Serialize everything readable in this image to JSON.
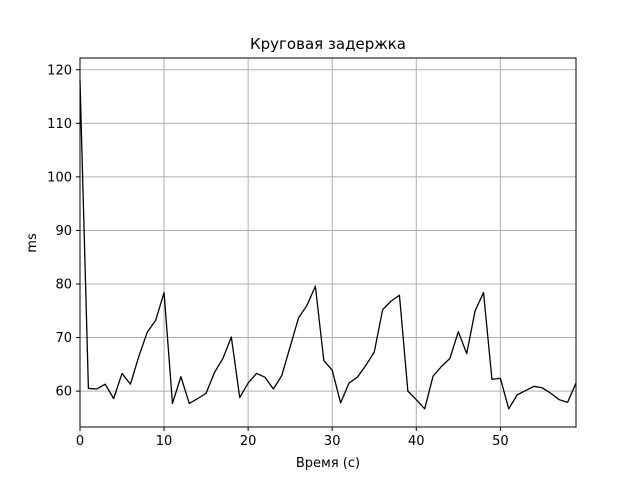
{
  "chart_data": {
    "type": "line",
    "title": "Круговая задержка",
    "xlabel": "Время (с)",
    "ylabel": "ms",
    "xlim": [
      0,
      59
    ],
    "ylim": [
      53.3,
      122.2
    ],
    "xticks": [
      0,
      10,
      20,
      30,
      40,
      50
    ],
    "yticks": [
      60,
      70,
      80,
      90,
      100,
      110,
      120
    ],
    "grid": true,
    "line_color": "#000000",
    "grid_color": "#b0b0b0",
    "series": [
      {
        "x": [
          0,
          1,
          2,
          3,
          4,
          5,
          6,
          7,
          8,
          9,
          10,
          11,
          12,
          13,
          14,
          15,
          16,
          17,
          18,
          19,
          20,
          21,
          22,
          23,
          24,
          25,
          26,
          27,
          28,
          29,
          30,
          31,
          32,
          33,
          34,
          35,
          36,
          37,
          38,
          39,
          40,
          41,
          42,
          43,
          44,
          45,
          46,
          47,
          48,
          49,
          50,
          51,
          52,
          53,
          54,
          55,
          56,
          57,
          58,
          59
        ],
        "values": [
          118.0,
          60.5,
          60.4,
          61.3,
          58.6,
          63.3,
          61.3,
          66.5,
          71.0,
          73.2,
          78.4,
          57.7,
          62.7,
          57.7,
          58.6,
          59.6,
          63.5,
          66.1,
          70.1,
          58.8,
          61.5,
          63.3,
          62.6,
          60.4,
          62.9,
          68.3,
          73.7,
          76.0,
          79.6,
          65.7,
          63.9,
          57.8,
          61.5,
          62.6,
          64.8,
          67.3,
          75.2,
          76.8,
          77.9,
          60.0,
          58.4,
          56.7,
          62.8,
          64.6,
          66.1,
          71.1,
          67.0,
          75.0,
          78.4,
          62.2,
          62.4,
          56.7,
          59.3,
          60.1,
          60.9,
          60.6,
          59.6,
          58.4,
          57.9,
          61.5
        ]
      }
    ]
  }
}
